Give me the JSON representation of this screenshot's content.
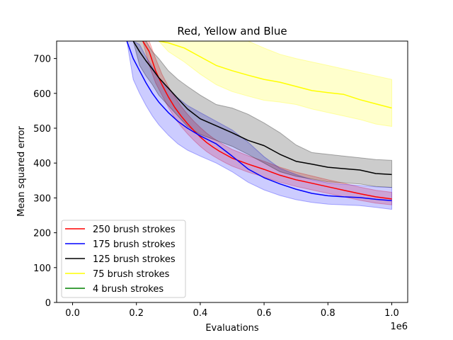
{
  "chart_data": {
    "type": "line",
    "title": "Red, Yellow and Blue",
    "xlabel": "Evaluations",
    "ylabel": "Mean squared error",
    "x_offset_label": "1e6",
    "xlim": [
      -0.05,
      1.05
    ],
    "ylim": [
      0,
      750
    ],
    "xticks": [
      0.0,
      0.2,
      0.4,
      0.6,
      0.8,
      1.0
    ],
    "xtick_labels": [
      "0.0",
      "0.2",
      "0.4",
      "0.6",
      "0.8",
      "1.0"
    ],
    "yticks": [
      0,
      100,
      200,
      300,
      400,
      500,
      600,
      700
    ],
    "ytick_labels": [
      "0",
      "100",
      "200",
      "300",
      "400",
      "500",
      "600",
      "700"
    ],
    "grid": false,
    "legend_position": "lower-left",
    "series": [
      {
        "name": "250 brush strokes",
        "color": "#ff0000",
        "x": [
          0.22,
          0.24,
          0.26,
          0.28,
          0.3,
          0.32,
          0.34,
          0.36,
          0.38,
          0.4,
          0.42,
          0.44,
          0.46,
          0.48,
          0.5,
          0.55,
          0.6,
          0.65,
          0.7,
          0.75,
          0.8,
          0.85,
          0.9,
          0.95,
          1.0
        ],
        "y": [
          750,
          720,
          665,
          625,
          590,
          560,
          535,
          513,
          493,
          475,
          459,
          446,
          434,
          424,
          414,
          397,
          382,
          365,
          352,
          342,
          332,
          322,
          312,
          303,
          297
        ],
        "y_low": [
          750,
          680,
          630,
          595,
          560,
          530,
          505,
          484,
          465,
          448,
          433,
          421,
          410,
          400,
          391,
          374,
          360,
          345,
          333,
          323,
          313,
          303,
          293,
          285,
          280
        ],
        "y_high": [
          750,
          750,
          700,
          655,
          620,
          590,
          563,
          540,
          520,
          502,
          486,
          472,
          460,
          449,
          439,
          421,
          405,
          388,
          374,
          363,
          352,
          342,
          331,
          322,
          316
        ]
      },
      {
        "name": "175 brush strokes",
        "color": "#0000ff",
        "x": [
          0.17,
          0.19,
          0.21,
          0.23,
          0.25,
          0.27,
          0.3,
          0.33,
          0.36,
          0.4,
          0.45,
          0.5,
          0.55,
          0.6,
          0.65,
          0.7,
          0.75,
          0.8,
          0.85,
          0.9,
          0.95,
          1.0
        ],
        "y": [
          750,
          700,
          665,
          630,
          600,
          575,
          545,
          520,
          500,
          478,
          455,
          420,
          383,
          358,
          340,
          325,
          313,
          306,
          303,
          301,
          296,
          292
        ],
        "y_low": [
          750,
          640,
          600,
          565,
          535,
          510,
          480,
          455,
          437,
          420,
          400,
          375,
          345,
          323,
          307,
          295,
          287,
          282,
          280,
          278,
          273,
          267
        ],
        "y_high": [
          750,
          750,
          740,
          705,
          675,
          645,
          615,
          587,
          565,
          545,
          520,
          495,
          460,
          418,
          385,
          367,
          352,
          343,
          339,
          336,
          332,
          330
        ]
      },
      {
        "name": "125 brush strokes",
        "color": "#000000",
        "x": [
          0.19,
          0.21,
          0.23,
          0.25,
          0.27,
          0.3,
          0.33,
          0.36,
          0.4,
          0.45,
          0.5,
          0.55,
          0.6,
          0.65,
          0.7,
          0.75,
          0.8,
          0.85,
          0.9,
          0.95,
          1.0
        ],
        "y": [
          750,
          720,
          693,
          670,
          645,
          615,
          585,
          555,
          527,
          507,
          487,
          465,
          450,
          425,
          405,
          397,
          388,
          384,
          380,
          370,
          367
        ],
        "y_low": [
          750,
          680,
          650,
          625,
          595,
          565,
          535,
          505,
          482,
          465,
          448,
          425,
          400,
          375,
          362,
          354,
          346,
          343,
          340,
          333,
          330
        ],
        "y_high": [
          750,
          750,
          750,
          720,
          700,
          665,
          640,
          620,
          595,
          568,
          558,
          540,
          515,
          487,
          452,
          430,
          425,
          420,
          415,
          410,
          408
        ]
      },
      {
        "name": "75 brush strokes",
        "color": "#ffff00",
        "x": [
          0.27,
          0.3,
          0.35,
          0.4,
          0.45,
          0.5,
          0.55,
          0.6,
          0.65,
          0.7,
          0.75,
          0.8,
          0.85,
          0.9,
          0.95,
          1.0
        ],
        "y": [
          750,
          745,
          730,
          705,
          680,
          665,
          652,
          640,
          632,
          620,
          608,
          602,
          597,
          582,
          570,
          558
        ],
        "y_low": [
          750,
          720,
          690,
          655,
          625,
          605,
          592,
          580,
          575,
          568,
          555,
          545,
          535,
          525,
          512,
          505
        ],
        "y_high": [
          750,
          750,
          750,
          750,
          750,
          750,
          750,
          730,
          712,
          700,
          690,
          680,
          670,
          660,
          650,
          640
        ]
      },
      {
        "name": "4 brush strokes",
        "color": "#008000",
        "x": [],
        "y": [],
        "y_low": [],
        "y_high": []
      }
    ]
  }
}
